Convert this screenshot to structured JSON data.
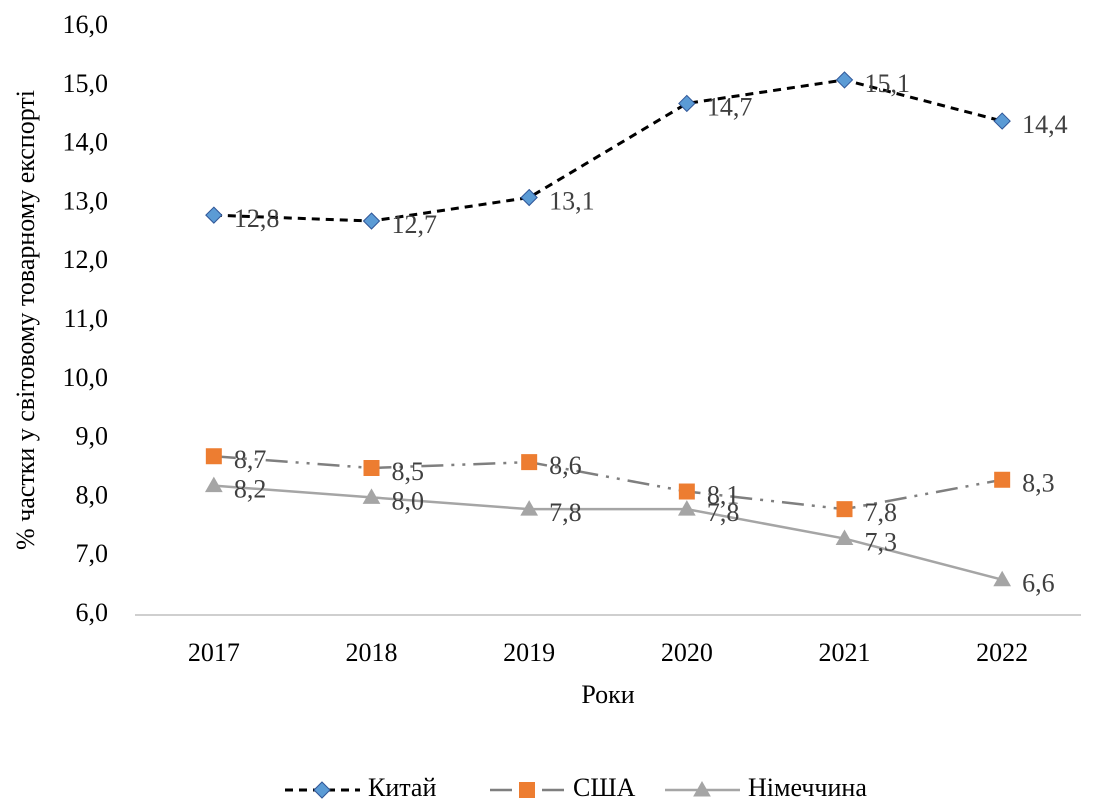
{
  "chart_data": {
    "type": "line",
    "y_label": "% частки у світовому товарному експорті",
    "x_label": "Роки",
    "categories": [
      "2017",
      "2018",
      "2019",
      "2020",
      "2021",
      "2022"
    ],
    "series": [
      {
        "name": "Китай",
        "color": "#5b9bd5",
        "line_color": "#000000",
        "line_style": "dash",
        "marker": "diamond",
        "values": [
          12.8,
          12.7,
          13.1,
          14.7,
          15.1,
          14.4
        ],
        "value_labels": [
          "12,8",
          "12,7",
          "13,1",
          "14,7",
          "15,1",
          "14,4"
        ]
      },
      {
        "name": "США",
        "color": "#ed7d31",
        "line_color": "#7f7f7f",
        "line_style": "dashdotdot",
        "marker": "square",
        "values": [
          8.7,
          8.5,
          8.6,
          8.1,
          7.8,
          8.3
        ],
        "value_labels": [
          "8,7",
          "8,5",
          "8,6",
          "8,1",
          "7,8",
          "8,3"
        ]
      },
      {
        "name": "Німеччина",
        "color": "#a5a5a5",
        "line_color": "#a5a5a5",
        "line_style": "solid",
        "marker": "triangle",
        "values": [
          8.2,
          8.0,
          7.8,
          7.8,
          7.3,
          6.6
        ],
        "value_labels": [
          "8,2",
          "8,0",
          "7,8",
          "7,8",
          "7,3",
          "6,6"
        ]
      }
    ],
    "ylim": [
      6,
      16
    ],
    "yticks": [
      {
        "value": 6,
        "label": "6,0"
      },
      {
        "value": 7,
        "label": "7,0"
      },
      {
        "value": 8,
        "label": "8,0"
      },
      {
        "value": 9,
        "label": "9,0"
      },
      {
        "value": 10,
        "label": "10,0"
      },
      {
        "value": 11,
        "label": "11,0"
      },
      {
        "value": 12,
        "label": "12,0"
      },
      {
        "value": 13,
        "label": "13,0"
      },
      {
        "value": 14,
        "label": "14,0"
      },
      {
        "value": 15,
        "label": "15,0"
      },
      {
        "value": 16,
        "label": "16,0"
      }
    ],
    "grid": false,
    "legend": "bottom"
  }
}
